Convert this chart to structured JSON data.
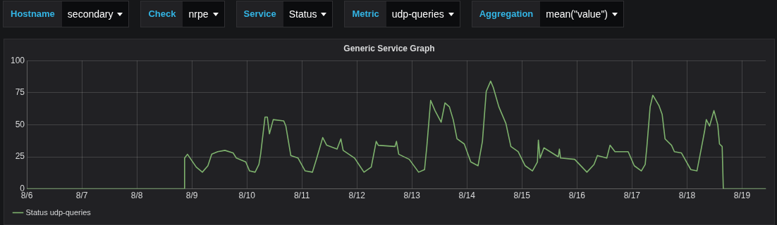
{
  "chart_data": {
    "type": "line",
    "title": "Generic Service Graph",
    "annotations": [
      "Hostname",
      "secondary",
      "Check",
      "nrpe",
      "Service",
      "Status",
      "Metric",
      "udp-queries",
      "Aggregation",
      "mean(\"value\")"
    ],
    "xlim": [
      "--08-06T00:00",
      "--08-19T10:20"
    ],
    "xticks": [
      {
        "value": "--08-06T00:00",
        "label": "8/6"
      },
      {
        "value": "--08-07T00:00",
        "label": "8/7"
      },
      {
        "value": "--08-08T00:00",
        "label": "8/8"
      },
      {
        "value": "--08-09T00:00",
        "label": "8/9"
      },
      {
        "value": "--08-10T00:00",
        "label": "8/10"
      },
      {
        "value": "--08-11T00:00",
        "label": "8/11"
      },
      {
        "value": "--08-12T00:00",
        "label": "8/12"
      },
      {
        "value": "--08-13T00:00",
        "label": "8/13"
      },
      {
        "value": "--08-14T00:00",
        "label": "8/14"
      },
      {
        "value": "--08-15T00:00",
        "label": "8/15"
      },
      {
        "value": "--08-16T00:00",
        "label": "8/16"
      },
      {
        "value": "--08-17T00:00",
        "label": "8/17"
      },
      {
        "value": "--08-18T00:00",
        "label": "8/18"
      },
      {
        "value": "--08-19T00:00",
        "label": "8/19"
      }
    ],
    "ylim": [
      0,
      100
    ],
    "yticks": [
      0,
      25,
      50,
      75,
      100
    ],
    "grid": true,
    "legend": "bottom left",
    "marker": "none",
    "line_style": "solid",
    "series": [
      {
        "name": "Status udp-queries",
        "color": "#7eb26d",
        "x": [
          "--08-06T00:00",
          "--08-08T20:40",
          "--08-08T20:50",
          "--08-08T22:05",
          "--08-09T01:55",
          "--08-09T04:35",
          "--08-09T07:00",
          "--08-09T08:40",
          "--08-09T11:15",
          "--08-09T14:25",
          "--08-09T18:00",
          "--08-09T19:25",
          "--08-09T23:30",
          "--08-10T01:10",
          "--08-10T03:35",
          "--08-10T05:15",
          "--08-10T06:00",
          "--08-10T07:55",
          "--08-10T08:55",
          "--08-10T09:50",
          "--08-10T11:30",
          "--08-10T16:05",
          "--08-10T17:00",
          "--08-10T19:10",
          "--08-10T22:20",
          "--08-11T01:25",
          "--08-11T04:35",
          "--08-11T06:30",
          "--08-11T09:05",
          "--08-11T10:50",
          "--08-11T15:20",
          "--08-11T17:00",
          "--08-11T18:00",
          "--08-11T23:00",
          "--08-12T03:05",
          "--08-12T06:15",
          "--08-12T08:25",
          "--08-12T09:20",
          "--08-12T16:35",
          "--08-12T17:15",
          "--08-12T18:15",
          "--08-12T22:50",
          "--08-13T02:55",
          "--08-13T05:30",
          "--08-13T06:30",
          "--08-13T08:10",
          "--08-13T10:05",
          "--08-13T12:45",
          "--08-13T14:25",
          "--08-13T16:20",
          "--08-13T18:00",
          "--08-13T19:40",
          "--08-13T22:50",
          "--08-14T01:40",
          "--08-14T04:50",
          "--08-14T06:45",
          "--08-14T08:25",
          "--08-14T10:20",
          "--08-14T11:30",
          "--08-14T13:55",
          "--08-14T17:00",
          "--08-14T19:10",
          "--08-14T22:20",
          "--08-15T01:25",
          "--08-15T04:35",
          "--08-15T06:45",
          "--08-15T07:10",
          "--08-15T07:55",
          "--08-15T09:35",
          "--08-15T15:50",
          "--08-15T16:20",
          "--08-15T16:50",
          "--08-15T23:00",
          "--08-16T04:20",
          "--08-16T07:25",
          "--08-16T08:55",
          "--08-16T13:00",
          "--08-16T14:25",
          "--08-16T16:35",
          "--08-16T22:20",
          "--08-17T01:00",
          "--08-17T04:05",
          "--08-17T05:45",
          "--08-17T06:30",
          "--08-17T07:55",
          "--08-17T09:05",
          "--08-17T11:45",
          "--08-17T13:10",
          "--08-17T14:25",
          "--08-17T17:15",
          "--08-17T18:30",
          "--08-17T21:35",
          "--08-18T01:40",
          "--08-18T04:20",
          "--08-18T05:45",
          "--08-18T07:40",
          "--08-18T08:25",
          "--08-18T09:50",
          "--08-18T11:45",
          "--08-18T13:25",
          "--08-18T14:10",
          "--08-18T15:20",
          "--08-18T15:50",
          "--08-19T10:20"
        ],
        "values": [
          0,
          0,
          24,
          27,
          17,
          13,
          18,
          27,
          29,
          30,
          28,
          24,
          21,
          14,
          13,
          19,
          27,
          56,
          56,
          43,
          54,
          53,
          49,
          26,
          24,
          14,
          13,
          24,
          40,
          34,
          31,
          39,
          30,
          24,
          13,
          17,
          37,
          34,
          33,
          37,
          27,
          23,
          13,
          15,
          33,
          69,
          61,
          52,
          67,
          64,
          54,
          39,
          35,
          21,
          18,
          37,
          76,
          84,
          79,
          64,
          51,
          33,
          29,
          18,
          14,
          21,
          38,
          24,
          32,
          25,
          31,
          24,
          23,
          13,
          19,
          26,
          24,
          34,
          29,
          29,
          18,
          14,
          19,
          33,
          64,
          73,
          65,
          58,
          39,
          34,
          29,
          28,
          15,
          14,
          27,
          45,
          54,
          49,
          61,
          50,
          35,
          33,
          0,
          0
        ]
      }
    ]
  }
}
